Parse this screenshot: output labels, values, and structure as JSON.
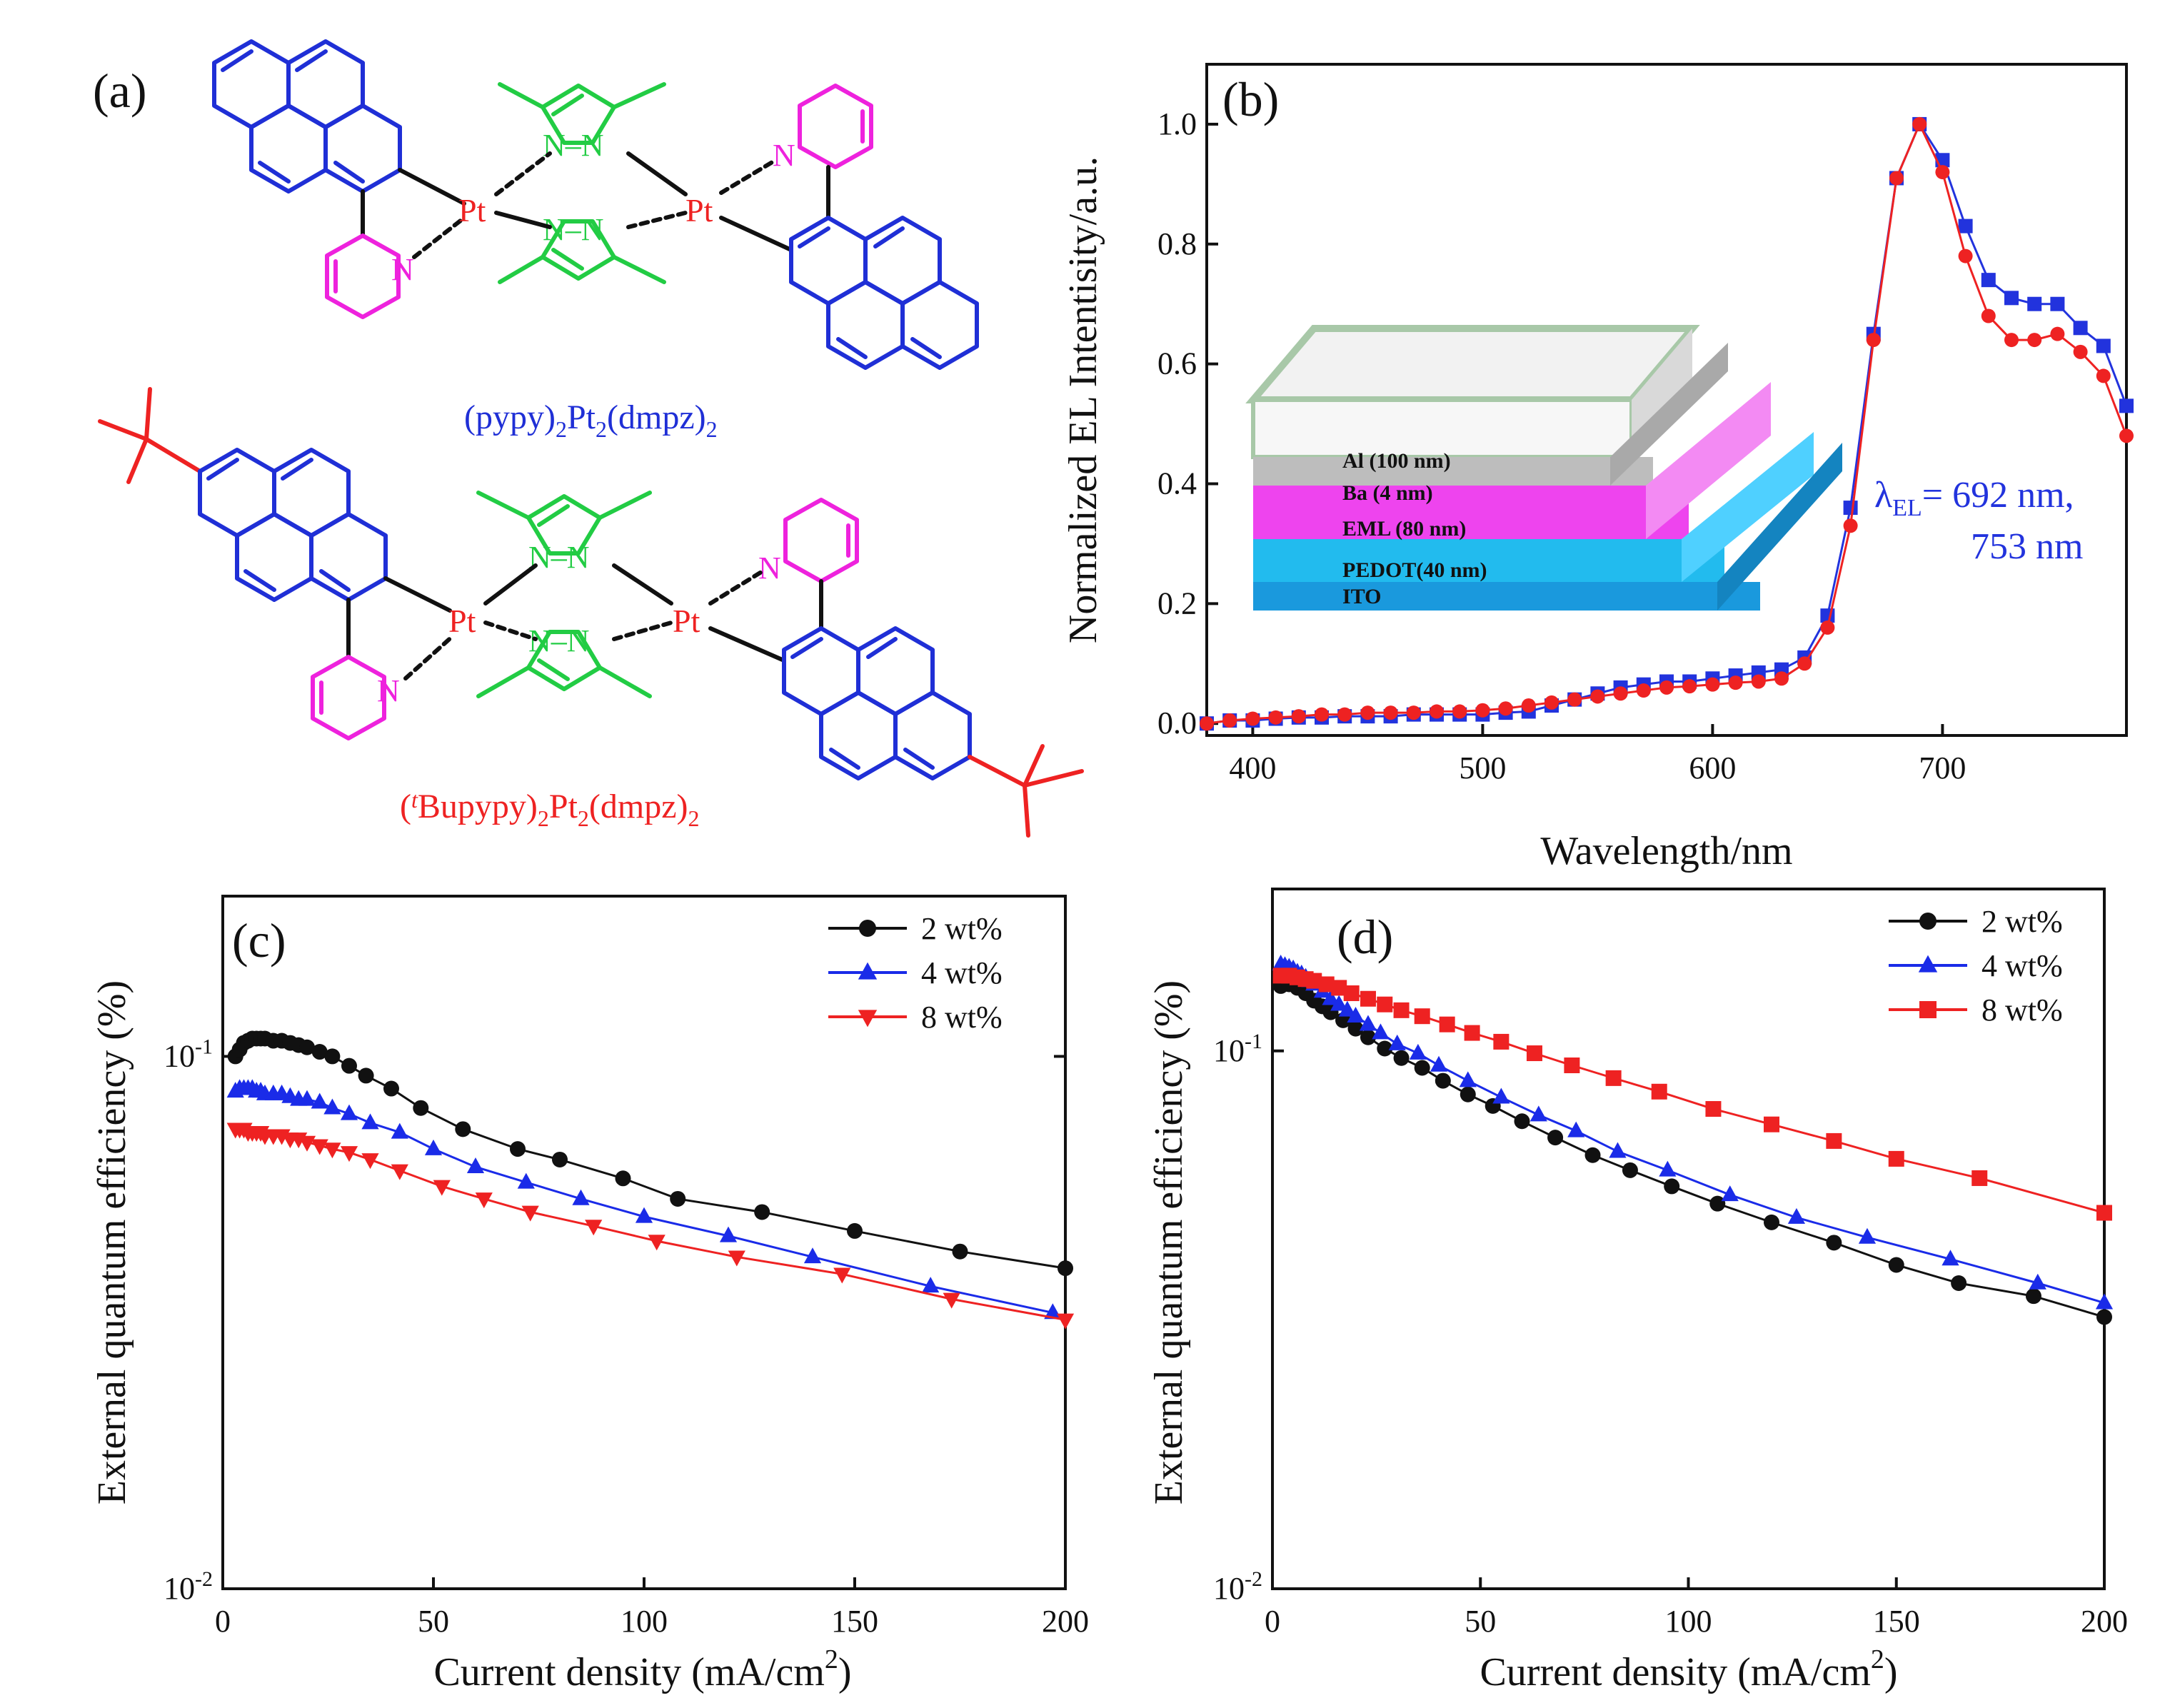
{
  "panel_labels": {
    "a": "(a)",
    "b": "(b)",
    "c": "(c)",
    "d": "(d)"
  },
  "molecules": {
    "top_name": "(pypy)",
    "top_name_parts": {
      "s1": "2",
      "mid": "Pt",
      "s2": "2",
      "tail": "(dmpz)",
      "s3": "2"
    },
    "bottom_name_open": "(",
    "bottom_name_t": "t",
    "bottom_name_rest": "Bupypy)",
    "bottom_name_parts": {
      "s1": "2",
      "mid": "Pt",
      "s2": "2",
      "tail": "(dmpz)",
      "s3": "2"
    },
    "atoms": {
      "pt": "Pt",
      "n": "N",
      "nn": "N–N"
    },
    "colors": {
      "pyrene": "#1f2fd6",
      "pyridine": "#ee22dd",
      "pyrazole": "#22cc44",
      "pt": "#ee2222",
      "tbu": "#ee2222"
    }
  },
  "chart_data": [
    {
      "id": "b",
      "type": "line",
      "xlabel": "Wavelength/nm",
      "ylabel": "Normalized EL Intentisity/a.u.",
      "xlim": [
        380,
        780
      ],
      "ylim": [
        -0.02,
        1.1
      ],
      "xticks": [
        400,
        500,
        600,
        700
      ],
      "yticks": [
        0.0,
        0.2,
        0.4,
        0.6,
        0.8,
        1.0
      ],
      "ytick_labels": [
        "0.0",
        "0.2",
        "0.4",
        "0.6",
        "0.8",
        "1.0"
      ],
      "annotation_line1_lambda": "λ",
      "annotation_line1_sub": "EL",
      "annotation_line1_rest": "= 692 nm,",
      "annotation_line2": "753 nm",
      "inset_layers": [
        "Al (100 nm)",
        "Ba (4 nm)",
        "EML (80 nm)",
        "PEDOT(40 nm)",
        "ITO"
      ],
      "series": [
        {
          "name": "blue-squares",
          "color": "#2233dd",
          "marker": "square",
          "x": [
            380,
            390,
            400,
            410,
            420,
            430,
            440,
            450,
            460,
            470,
            480,
            490,
            500,
            510,
            520,
            530,
            540,
            550,
            560,
            570,
            580,
            590,
            600,
            610,
            620,
            630,
            640,
            650,
            660,
            670,
            680,
            690,
            700,
            710,
            720,
            730,
            740,
            750,
            760,
            770,
            780
          ],
          "y": [
            0.0,
            0.005,
            0.005,
            0.008,
            0.01,
            0.01,
            0.012,
            0.012,
            0.012,
            0.015,
            0.015,
            0.015,
            0.015,
            0.018,
            0.02,
            0.03,
            0.04,
            0.05,
            0.06,
            0.065,
            0.07,
            0.07,
            0.075,
            0.08,
            0.085,
            0.09,
            0.11,
            0.18,
            0.36,
            0.65,
            0.91,
            1.0,
            0.94,
            0.83,
            0.74,
            0.71,
            0.7,
            0.7,
            0.66,
            0.63,
            0.53
          ]
        },
        {
          "name": "red-circles",
          "color": "#ee2222",
          "marker": "circle",
          "x": [
            380,
            390,
            400,
            410,
            420,
            430,
            440,
            450,
            460,
            470,
            480,
            490,
            500,
            510,
            520,
            530,
            540,
            550,
            560,
            570,
            580,
            590,
            600,
            610,
            620,
            630,
            640,
            650,
            660,
            670,
            680,
            690,
            700,
            710,
            720,
            730,
            740,
            750,
            760,
            770,
            780
          ],
          "y": [
            0.0,
            0.005,
            0.008,
            0.01,
            0.012,
            0.015,
            0.015,
            0.018,
            0.018,
            0.018,
            0.02,
            0.02,
            0.022,
            0.025,
            0.03,
            0.035,
            0.04,
            0.045,
            0.05,
            0.055,
            0.06,
            0.062,
            0.065,
            0.068,
            0.07,
            0.075,
            0.1,
            0.16,
            0.33,
            0.64,
            0.91,
            1.0,
            0.92,
            0.78,
            0.68,
            0.64,
            0.64,
            0.65,
            0.62,
            0.58,
            0.48
          ]
        }
      ]
    },
    {
      "id": "c",
      "type": "line",
      "xlabel": "Current density (mA/cm",
      "xlabel_sup": "2",
      "xlabel_close": ")",
      "ylabel": "External quantum efficiency (%)",
      "yscale": "log",
      "xlim": [
        0,
        200
      ],
      "ylim": [
        0.01,
        0.2
      ],
      "xticks": [
        0,
        50,
        100,
        150,
        200
      ],
      "yticks": [
        0.01,
        0.1
      ],
      "ytick_labels": [
        {
          "base": "10",
          "exp": "-2"
        },
        {
          "base": "10",
          "exp": "-1"
        }
      ],
      "legend": "top-right",
      "series": [
        {
          "name": "2 wt%",
          "color": "#111111",
          "marker": "circle",
          "x": [
            3,
            4,
            5,
            6,
            7,
            8,
            9,
            10,
            12,
            14,
            16,
            18,
            20,
            23,
            26,
            30,
            34,
            40,
            47,
            57,
            70,
            80,
            95,
            108,
            128,
            150,
            175,
            200
          ],
          "y": [
            0.1,
            0.103,
            0.106,
            0.107,
            0.108,
            0.108,
            0.108,
            0.108,
            0.107,
            0.107,
            0.106,
            0.105,
            0.104,
            0.102,
            0.1,
            0.096,
            0.092,
            0.087,
            0.08,
            0.073,
            0.067,
            0.064,
            0.059,
            0.054,
            0.051,
            0.047,
            0.043,
            0.04
          ]
        },
        {
          "name": "4 wt%",
          "color": "#1a2be8",
          "marker": "triangle-up",
          "x": [
            3,
            4,
            5,
            6,
            7,
            8,
            9,
            10,
            12,
            14,
            16,
            18,
            20,
            23,
            26,
            30,
            35,
            42,
            50,
            60,
            72,
            85,
            100,
            120,
            140,
            168,
            197
          ],
          "y": [
            0.086,
            0.087,
            0.087,
            0.087,
            0.087,
            0.086,
            0.086,
            0.085,
            0.085,
            0.085,
            0.084,
            0.083,
            0.083,
            0.082,
            0.08,
            0.078,
            0.075,
            0.072,
            0.067,
            0.062,
            0.058,
            0.054,
            0.05,
            0.046,
            0.042,
            0.037,
            0.033
          ]
        },
        {
          "name": "8 wt%",
          "color": "#ee2222",
          "marker": "triangle-down",
          "x": [
            3,
            4,
            5,
            6,
            7,
            8,
            9,
            10,
            12,
            14,
            16,
            18,
            20,
            23,
            26,
            30,
            35,
            42,
            52,
            62,
            73,
            88,
            103,
            122,
            147,
            173,
            200
          ],
          "y": [
            0.073,
            0.073,
            0.073,
            0.072,
            0.072,
            0.072,
            0.072,
            0.071,
            0.071,
            0.071,
            0.07,
            0.07,
            0.069,
            0.068,
            0.067,
            0.066,
            0.064,
            0.061,
            0.057,
            0.054,
            0.051,
            0.048,
            0.045,
            0.042,
            0.039,
            0.035,
            0.032
          ]
        }
      ]
    },
    {
      "id": "d",
      "type": "line",
      "xlabel": "Current density (mA/cm",
      "xlabel_sup": "2",
      "xlabel_close": ")",
      "ylabel": "External quantum efficiency (%)",
      "yscale": "log",
      "xlim": [
        0,
        200
      ],
      "ylim": [
        0.01,
        0.2
      ],
      "xticks": [
        0,
        50,
        100,
        150,
        200
      ],
      "yticks": [
        0.01,
        0.1
      ],
      "ytick_labels": [
        {
          "base": "10",
          "exp": "-2"
        },
        {
          "base": "10",
          "exp": "-1"
        }
      ],
      "legend": "top-right",
      "series": [
        {
          "name": "2 wt%",
          "color": "#111111",
          "marker": "circle",
          "x": [
            2,
            4,
            6,
            8,
            10,
            12,
            14,
            17,
            20,
            23,
            27,
            31,
            36,
            41,
            47,
            53,
            60,
            68,
            77,
            86,
            96,
            107,
            120,
            135,
            150,
            165,
            183,
            200
          ],
          "y": [
            0.132,
            0.133,
            0.131,
            0.128,
            0.124,
            0.121,
            0.118,
            0.114,
            0.11,
            0.106,
            0.101,
            0.097,
            0.093,
            0.088,
            0.083,
            0.079,
            0.074,
            0.069,
            0.064,
            0.06,
            0.056,
            0.052,
            0.048,
            0.044,
            0.04,
            0.037,
            0.035,
            0.032
          ]
        },
        {
          "name": "4 wt%",
          "color": "#1a2be8",
          "marker": "triangle-up",
          "x": [
            2,
            3,
            4,
            5,
            6,
            7,
            8,
            9,
            10,
            12,
            14,
            16,
            18,
            20,
            23,
            26,
            30,
            35,
            40,
            47,
            55,
            64,
            73,
            83,
            95,
            110,
            126,
            143,
            163,
            184,
            200
          ],
          "y": [
            0.145,
            0.144,
            0.143,
            0.142,
            0.14,
            0.139,
            0.137,
            0.135,
            0.133,
            0.129,
            0.125,
            0.122,
            0.119,
            0.116,
            0.112,
            0.108,
            0.103,
            0.099,
            0.094,
            0.088,
            0.082,
            0.076,
            0.071,
            0.065,
            0.06,
            0.054,
            0.049,
            0.045,
            0.041,
            0.037,
            0.034
          ]
        },
        {
          "name": "8 wt%",
          "color": "#ee2222",
          "marker": "square",
          "x": [
            2,
            4,
            6,
            8,
            10,
            13,
            16,
            19,
            23,
            27,
            31,
            36,
            42,
            48,
            55,
            63,
            72,
            82,
            93,
            106,
            120,
            135,
            150,
            170,
            200
          ],
          "y": [
            0.138,
            0.138,
            0.137,
            0.136,
            0.135,
            0.133,
            0.131,
            0.128,
            0.125,
            0.122,
            0.119,
            0.116,
            0.112,
            0.108,
            0.104,
            0.099,
            0.094,
            0.089,
            0.084,
            0.078,
            0.073,
            0.068,
            0.063,
            0.058,
            0.05
          ]
        }
      ]
    }
  ]
}
